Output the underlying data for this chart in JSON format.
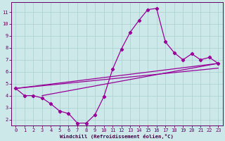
{
  "xlabel": "Windchill (Refroidissement éolien,°C)",
  "bg_color": "#cce8e8",
  "grid_color": "#aacfcf",
  "line_color": "#990099",
  "marker_color": "#990099",
  "xlim": [
    -0.5,
    23.5
  ],
  "ylim": [
    1.5,
    11.8
  ],
  "yticks": [
    2,
    3,
    4,
    5,
    6,
    7,
    8,
    9,
    10,
    11
  ],
  "xticks": [
    0,
    1,
    2,
    3,
    4,
    5,
    6,
    7,
    8,
    9,
    10,
    11,
    12,
    13,
    14,
    15,
    16,
    17,
    18,
    19,
    20,
    21,
    22,
    23
  ],
  "main_x": [
    0,
    1,
    2,
    3,
    4,
    5,
    6,
    7,
    8,
    9,
    10,
    11,
    12,
    13,
    14,
    15,
    16,
    17,
    18,
    19,
    20,
    21,
    22,
    23
  ],
  "main_y": [
    4.6,
    4.0,
    4.0,
    3.8,
    3.3,
    2.7,
    2.5,
    1.7,
    1.7,
    2.4,
    3.9,
    6.2,
    7.9,
    9.3,
    10.3,
    11.2,
    11.3,
    8.5,
    7.6,
    7.0,
    7.5,
    7.0,
    7.2,
    6.7
  ],
  "line1_x": [
    0,
    23
  ],
  "line1_y": [
    4.6,
    6.7
  ],
  "line2_x": [
    0,
    23
  ],
  "line2_y": [
    4.6,
    6.3
  ],
  "line3_x": [
    3,
    23
  ],
  "line3_y": [
    4.0,
    6.7
  ]
}
